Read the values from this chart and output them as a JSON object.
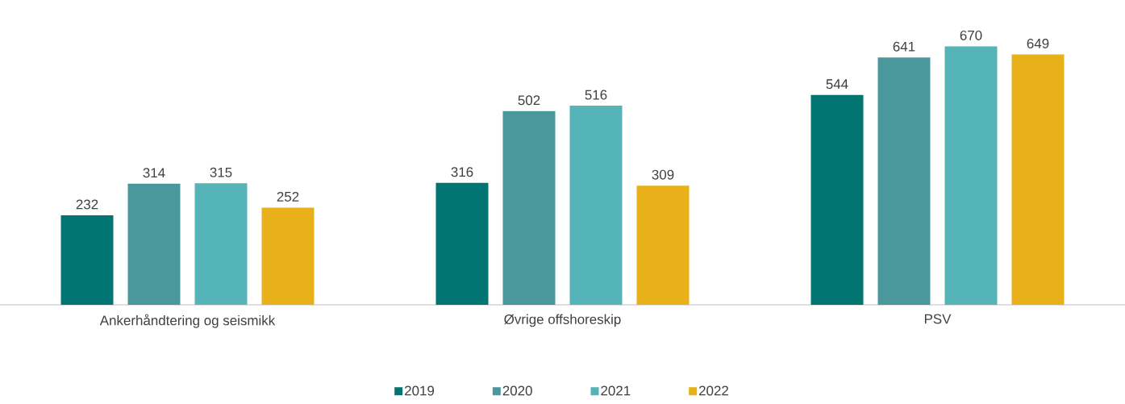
{
  "chart_data": {
    "type": "bar",
    "categories": [
      "Ankerhåndtering og seismikk",
      "Øvrige offshoreskip",
      "PSV"
    ],
    "series": [
      {
        "name": "2019",
        "color": "#007572",
        "values": [
          232,
          316,
          544
        ]
      },
      {
        "name": "2020",
        "color": "#4a989b",
        "values": [
          314,
          502,
          641
        ]
      },
      {
        "name": "2021",
        "color": "#55b4b8",
        "values": [
          315,
          516,
          670
        ]
      },
      {
        "name": "2022",
        "color": "#e8b11a",
        "values": [
          252,
          309,
          649
        ]
      }
    ],
    "data_labels": true,
    "legend": "bottom"
  }
}
